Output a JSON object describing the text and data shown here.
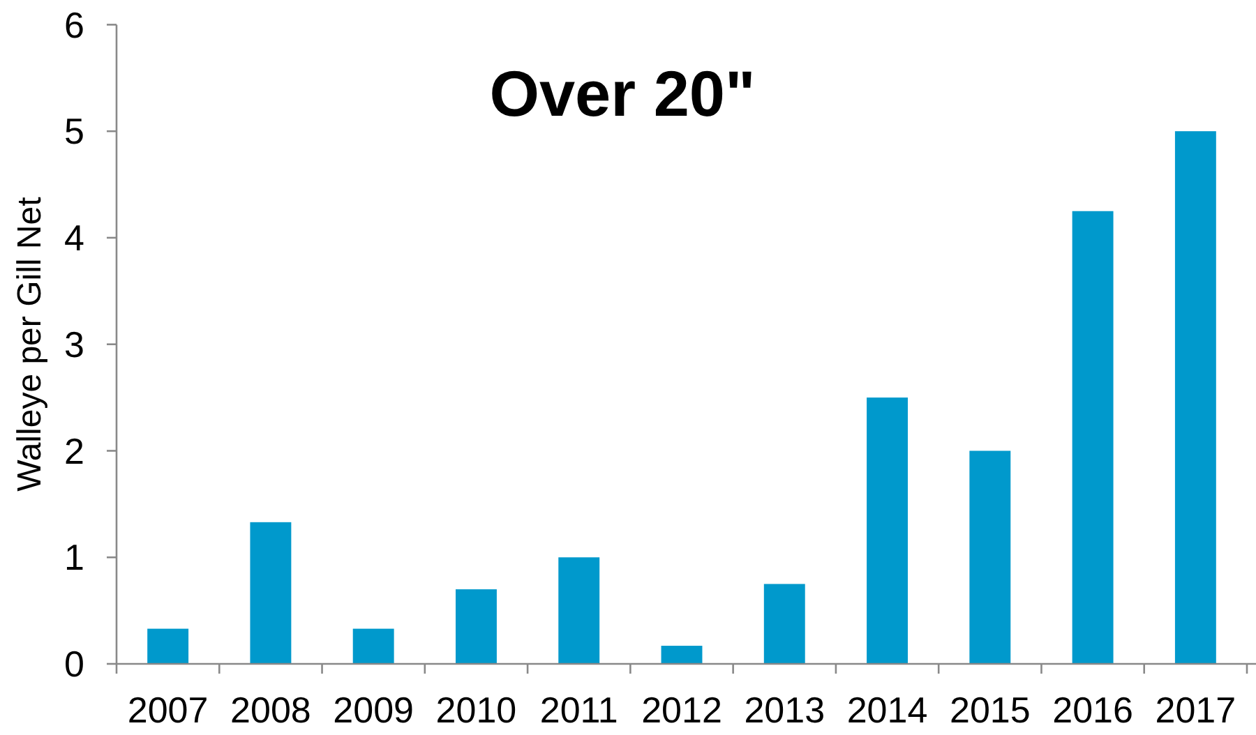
{
  "chart_data": {
    "type": "bar",
    "title": "Over 20\"",
    "ylabel": "Walleye per Gill Net",
    "categories": [
      "2007",
      "2008",
      "2009",
      "2010",
      "2011",
      "2012",
      "2013",
      "2014",
      "2015",
      "2016",
      "2017"
    ],
    "values": [
      0.33,
      1.33,
      0.33,
      0.7,
      1.0,
      0.17,
      0.75,
      2.5,
      2.0,
      4.25,
      5.0
    ],
    "color": "#0099cc",
    "ylim": [
      0,
      6
    ],
    "yticks": [
      0,
      1,
      2,
      3,
      4,
      5,
      6
    ]
  }
}
